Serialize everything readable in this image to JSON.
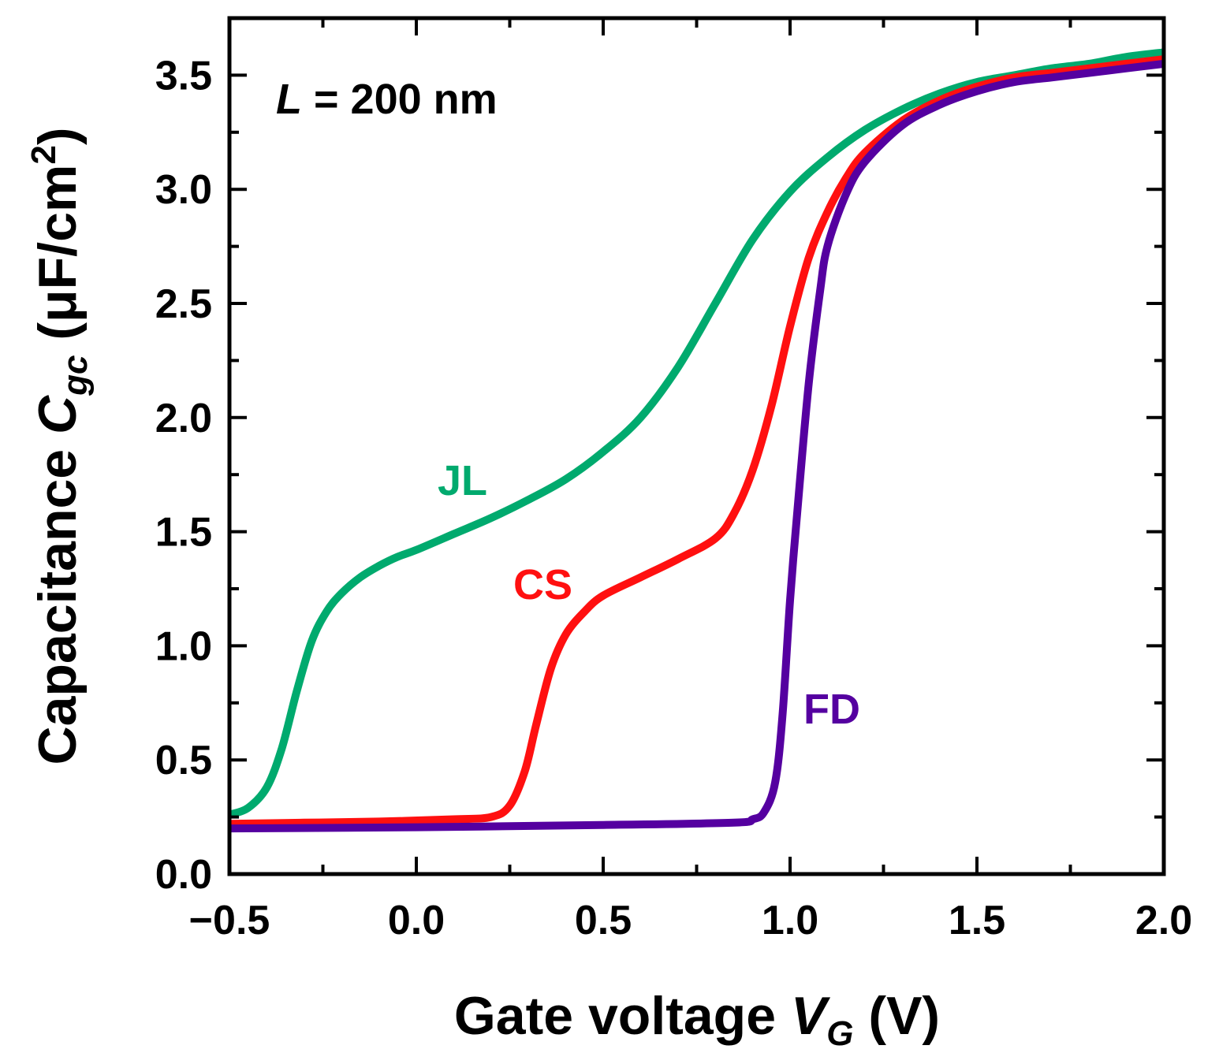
{
  "chart_data": {
    "type": "line",
    "title": "",
    "xlabel": {
      "main": "Gate voltage ",
      "var": "V",
      "sub": "G",
      "unit": " (V)"
    },
    "ylabel": {
      "main": "Capacitance ",
      "var": "C",
      "sub": "gc",
      "unit_open": " (μF/cm",
      "sup": "2",
      "unit_close": ")"
    },
    "xlim": [
      -0.5,
      2.0
    ],
    "ylim": [
      0.0,
      3.75
    ],
    "xticks": [
      -0.5,
      0.0,
      0.5,
      1.0,
      1.5,
      2.0
    ],
    "xtick_labels": [
      "−0.5",
      "0.0",
      "0.5",
      "1.0",
      "1.5",
      "2.0"
    ],
    "yticks": [
      0.0,
      0.5,
      1.0,
      1.5,
      2.0,
      2.5,
      3.0,
      3.5
    ],
    "ytick_labels": [
      "0.0",
      "0.5",
      "1.0",
      "1.5",
      "2.0",
      "2.5",
      "3.0",
      "3.5"
    ],
    "grid": false,
    "annotation": {
      "var": "L",
      "text": " = 200 nm"
    },
    "series": [
      {
        "name": "JL",
        "color": "#00AA6E",
        "x": [
          -0.5,
          -0.45,
          -0.4,
          -0.36,
          -0.32,
          -0.28,
          -0.24,
          -0.2,
          -0.15,
          -0.1,
          -0.05,
          0.0,
          0.1,
          0.2,
          0.3,
          0.4,
          0.5,
          0.6,
          0.7,
          0.8,
          0.9,
          1.0,
          1.1,
          1.2,
          1.3,
          1.4,
          1.5,
          1.6,
          1.7,
          1.8,
          1.9,
          2.0
        ],
        "y": [
          0.26,
          0.29,
          0.38,
          0.55,
          0.8,
          1.02,
          1.15,
          1.23,
          1.3,
          1.35,
          1.39,
          1.42,
          1.49,
          1.56,
          1.64,
          1.73,
          1.85,
          2.0,
          2.22,
          2.5,
          2.78,
          2.99,
          3.14,
          3.26,
          3.35,
          3.42,
          3.47,
          3.5,
          3.53,
          3.55,
          3.58,
          3.6
        ]
      },
      {
        "name": "CS",
        "color": "#FF1010",
        "x": [
          -0.5,
          -0.3,
          -0.1,
          0.1,
          0.2,
          0.25,
          0.29,
          0.32,
          0.36,
          0.4,
          0.45,
          0.5,
          0.6,
          0.7,
          0.8,
          0.85,
          0.9,
          0.95,
          1.0,
          1.05,
          1.1,
          1.15,
          1.2,
          1.3,
          1.4,
          1.5,
          1.6,
          1.7,
          1.8,
          1.9,
          2.0
        ],
        "y": [
          0.22,
          0.225,
          0.23,
          0.24,
          0.25,
          0.3,
          0.45,
          0.65,
          0.9,
          1.05,
          1.15,
          1.22,
          1.3,
          1.38,
          1.47,
          1.58,
          1.77,
          2.05,
          2.4,
          2.7,
          2.9,
          3.05,
          3.16,
          3.3,
          3.39,
          3.45,
          3.49,
          3.51,
          3.53,
          3.55,
          3.57
        ]
      },
      {
        "name": "FD",
        "color": "#5500A0",
        "x": [
          -0.5,
          0.0,
          0.5,
          0.85,
          0.9,
          0.93,
          0.96,
          0.98,
          1.0,
          1.02,
          1.05,
          1.08,
          1.1,
          1.15,
          1.2,
          1.3,
          1.4,
          1.5,
          1.6,
          1.7,
          1.8,
          1.9,
          2.0
        ],
        "y": [
          0.2,
          0.205,
          0.215,
          0.225,
          0.24,
          0.27,
          0.4,
          0.7,
          1.2,
          1.6,
          2.15,
          2.55,
          2.75,
          2.98,
          3.12,
          3.28,
          3.37,
          3.43,
          3.47,
          3.49,
          3.51,
          3.53,
          3.55
        ]
      }
    ]
  }
}
